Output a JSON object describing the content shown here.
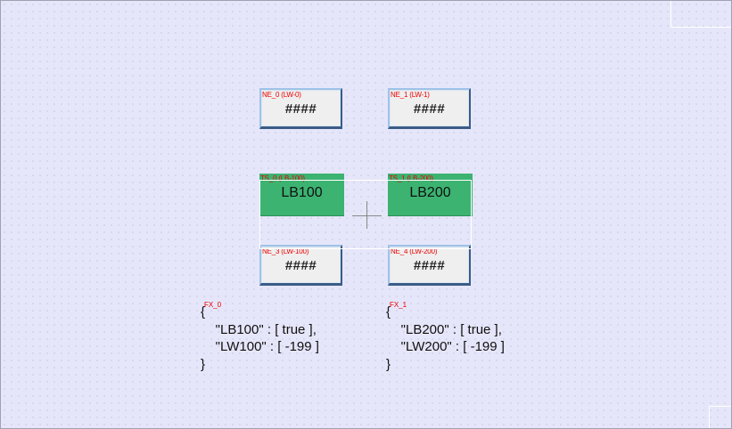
{
  "colors": {
    "canvas_bg": "#e6e6fa",
    "label_red": "#ee0000",
    "toggle_green": "#3cb371",
    "numeric_bg": "#efefef"
  },
  "numeric_entries": [
    {
      "label": "NE_0 (LW-0)",
      "value": "####"
    },
    {
      "label": "NE_1 (LW-1)",
      "value": "####"
    },
    {
      "label": "NE_3 (LW-100)",
      "value": "####"
    },
    {
      "label": "NE_4 (LW-200)",
      "value": "####"
    }
  ],
  "toggle_switches": [
    {
      "label": "TS_0 (LB-100)",
      "text": "LB100"
    },
    {
      "label": "TS_1 (LB-200)",
      "text": "LB200"
    }
  ],
  "scripts": [
    {
      "label": "FX_0",
      "lines": [
        "{",
        "    \"LB100\" : [ true ],",
        "    \"LW100\" : [ -199 ]",
        "}"
      ]
    },
    {
      "label": "FX_1",
      "lines": [
        "{",
        "    \"LB200\" : [ true ],",
        "    \"LW200\" : [ -199 ]",
        "}"
      ]
    }
  ]
}
